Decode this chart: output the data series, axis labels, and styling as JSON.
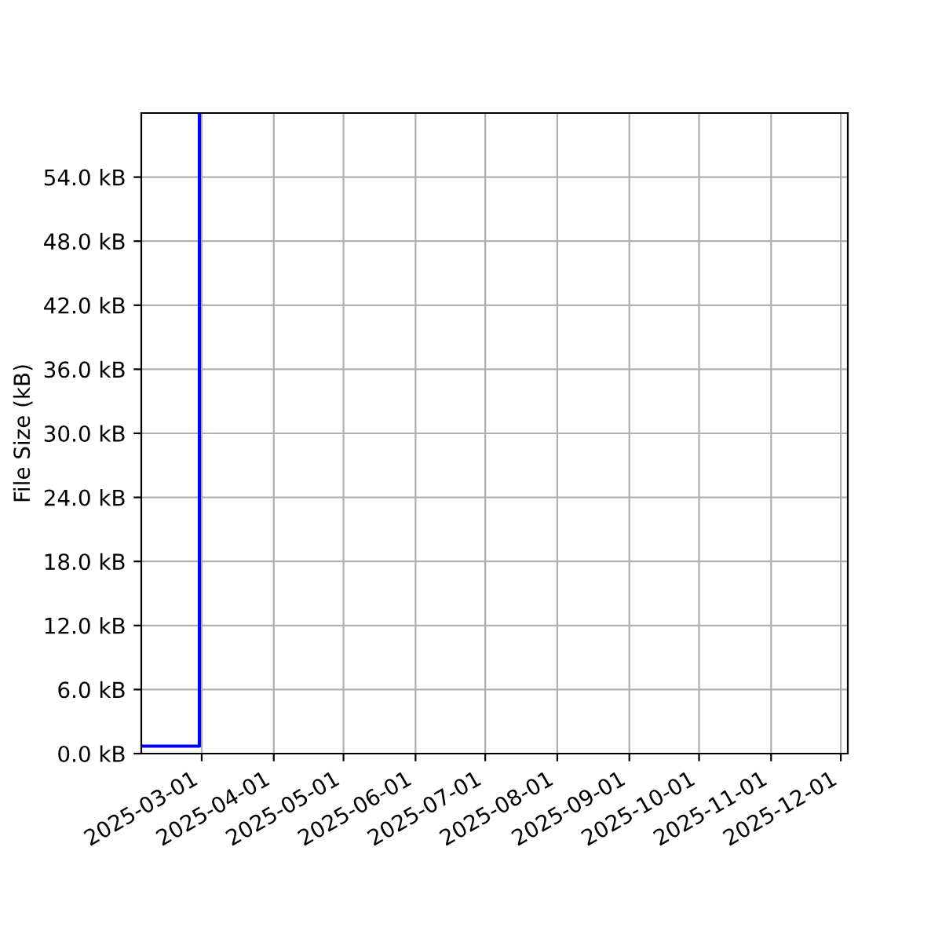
{
  "chart_data": {
    "type": "line",
    "ylabel": "File Size (kB)",
    "x": [
      "2025-02-03",
      "2025-02-28",
      "2025-02-28"
    ],
    "series": [
      {
        "color": "#0000ff",
        "values": [
          0.7,
          0.7,
          60
        ]
      }
    ],
    "xlim": [
      "2025-02-03",
      "2025-12-04"
    ],
    "xticks": [
      "2025-03-01",
      "2025-04-01",
      "2025-05-01",
      "2025-06-01",
      "2025-07-01",
      "2025-08-01",
      "2025-09-01",
      "2025-10-01",
      "2025-11-01",
      "2025-12-01"
    ],
    "ylim": [
      0,
      60
    ],
    "yticks": [
      {
        "value": 0,
        "label": "0.0 kB"
      },
      {
        "value": 6,
        "label": "6.0 kB"
      },
      {
        "value": 12,
        "label": "12.0 kB"
      },
      {
        "value": 18,
        "label": "18.0 kB"
      },
      {
        "value": 24,
        "label": "24.0 kB"
      },
      {
        "value": 30,
        "label": "30.0 kB"
      },
      {
        "value": 36,
        "label": "36.0 kB"
      },
      {
        "value": 42,
        "label": "42.0 kB"
      },
      {
        "value": 48,
        "label": "48.0 kB"
      },
      {
        "value": 54,
        "label": "54.0 kB"
      }
    ],
    "grid": true,
    "marker": "none",
    "line_style": "solid"
  }
}
